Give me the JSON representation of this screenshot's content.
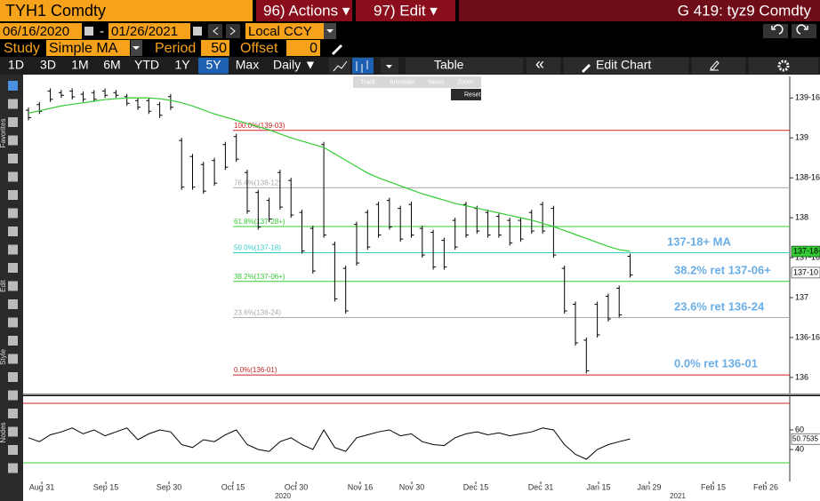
{
  "header": {
    "ticker": "TYH1 Comdty",
    "actions": "96) Actions ▾",
    "edit": "97) Edit ▾",
    "page": "G 419: tyz9 Comdty"
  },
  "controls": {
    "start_date": "06/16/2020",
    "separator": "-",
    "end_date": "01/26/2021",
    "currency": "Local CCY",
    "study_label": "Study",
    "study": "Simple MA",
    "period_label": "Period",
    "period": 50,
    "offset_label": "Offset",
    "offset": 0
  },
  "toolbar": {
    "ranges": [
      "1D",
      "3D",
      "1M",
      "6M",
      "YTD",
      "1Y",
      "5Y",
      "Max"
    ],
    "active_range": "5Y",
    "frequency": "Daily ▼",
    "table": "Table",
    "collapse": "«",
    "edit_chart": "Edit Chart"
  },
  "mini_toolbar": [
    "Track",
    "Annotate",
    "News",
    "Zoom",
    "Reset"
  ],
  "side_labels": [
    "Favorites",
    "Edit",
    "Style",
    "Nodes"
  ],
  "chart": {
    "type": "ohlc",
    "high": [
      139.38,
      139.45,
      139.62,
      139.6,
      139.62,
      139.58,
      139.6,
      139.62,
      139.6,
      139.55,
      139.5,
      139.5,
      139.45,
      139.55,
      139.0,
      138.8,
      138.7,
      138.75,
      138.95,
      139.05,
      138.6,
      138.35,
      138.25,
      138.6,
      138.5,
      138.1,
      137.9,
      138.95,
      137.7,
      137.4,
      137.95,
      138.1,
      138.2,
      138.25,
      138.15,
      138.2,
      137.9,
      137.85,
      137.75,
      138.0,
      138.2,
      138.15,
      138.1,
      138.05,
      138.0,
      138.0,
      138.1,
      138.2,
      138.15,
      137.4,
      136.95,
      136.5,
      136.95,
      137.05,
      137.15,
      137.55
    ],
    "low": [
      139.22,
      139.3,
      139.45,
      139.5,
      139.48,
      139.45,
      139.45,
      139.5,
      139.5,
      139.4,
      139.35,
      139.3,
      139.25,
      139.35,
      138.35,
      138.35,
      138.3,
      138.4,
      138.6,
      138.7,
      138.05,
      137.85,
      137.95,
      138.1,
      138.0,
      137.55,
      137.3,
      137.75,
      136.95,
      136.8,
      137.4,
      137.6,
      137.75,
      137.85,
      137.7,
      137.75,
      137.5,
      137.35,
      137.35,
      137.6,
      137.75,
      137.8,
      137.75,
      137.75,
      137.65,
      137.7,
      137.8,
      137.8,
      137.5,
      136.8,
      136.4,
      136.05,
      136.5,
      136.7,
      136.75,
      137.25
    ],
    "ma": {
      "color": "#33cc33",
      "values": [
        139.31,
        139.34,
        139.37,
        139.4,
        139.42,
        139.44,
        139.46,
        139.48,
        139.49,
        139.5,
        139.5,
        139.5,
        139.49,
        139.47,
        139.44,
        139.4,
        139.35,
        139.3,
        139.26,
        139.22,
        139.18,
        139.14,
        139.1,
        139.05,
        139.0,
        138.96,
        138.92,
        138.88,
        138.8,
        138.72,
        138.64,
        138.56,
        138.5,
        138.45,
        138.4,
        138.35,
        138.3,
        138.26,
        138.22,
        138.18,
        138.15,
        138.12,
        138.09,
        138.06,
        138.03,
        138.0,
        137.97,
        137.93,
        137.89,
        137.84,
        137.79,
        137.74,
        137.69,
        137.64,
        137.6,
        137.58
      ]
    },
    "ylim": [
      135.81,
      139.77
    ],
    "yticks": [
      136,
      {
        "value": 136.5,
        "label": "136-16"
      },
      137,
      {
        "value": 137.5,
        "label": "137-16"
      },
      138,
      {
        "value": 138.5,
        "label": "138-16"
      },
      139,
      {
        "value": 139.5,
        "label": "139-16"
      }
    ],
    "fib_levels": [
      {
        "label": "100.0%(139-03)",
        "value": 139.09375,
        "color": "#cc2222"
      },
      {
        "label": "76.4%(138-12)",
        "value": 138.375,
        "color": "#aaaaaa"
      },
      {
        "label": "61.8%(137-28+)",
        "value": 137.890625,
        "color": "#33cc33"
      },
      {
        "label": "50.0%(137-18)",
        "value": 137.5625,
        "color": "#33cccc"
      },
      {
        "label": "38.2%(137-06+)",
        "value": 137.203125,
        "color": "#33cc33"
      },
      {
        "label": "23.6%(136-24)",
        "value": 136.75,
        "color": "#aaaaaa"
      },
      {
        "label": "0.0%(136-01)",
        "value": 136.03125,
        "color": "#cc2222"
      }
    ],
    "annotations": [
      "137-18+ MA",
      "38.2% ret 137-06+",
      "23.6% ret 136-24",
      "0.0% ret 136-01"
    ],
    "last_prices": [
      {
        "value": 137.578125,
        "label": "137-18+",
        "color": "#33cc33"
      },
      {
        "value": 137.3125,
        "label": "137-10",
        "color": "#ffffff"
      }
    ],
    "xticks": [
      "Aug 31",
      "Sep 15",
      "Sep 30",
      "Oct 15",
      "Oct 30",
      "Nov 16",
      "Nov 30",
      "Dec 15",
      "Dec 31",
      "Jan 15",
      "Jan 29",
      "Feb 15",
      "Feb 26"
    ],
    "years": [
      "2020",
      "2021"
    ],
    "rsi": {
      "color": "#000000",
      "values": [
        52,
        48,
        55,
        58,
        62,
        56,
        60,
        54,
        58,
        62,
        50,
        56,
        60,
        58,
        45,
        42,
        50,
        48,
        55,
        60,
        45,
        40,
        38,
        48,
        52,
        45,
        40,
        60,
        42,
        38,
        52,
        55,
        58,
        60,
        54,
        56,
        48,
        45,
        44,
        52,
        56,
        58,
        55,
        57,
        54,
        56,
        58,
        62,
        60,
        45,
        35,
        30,
        40,
        45,
        48,
        50.7535
      ],
      "ylim": [
        9.1,
        92.7
      ],
      "yticks": [
        40,
        60
      ],
      "levels": [
        {
          "value": 87.3,
          "color": "#cc2222"
        },
        {
          "value": 26.4,
          "color": "#33cc33"
        }
      ],
      "last": 50.7535
    }
  }
}
